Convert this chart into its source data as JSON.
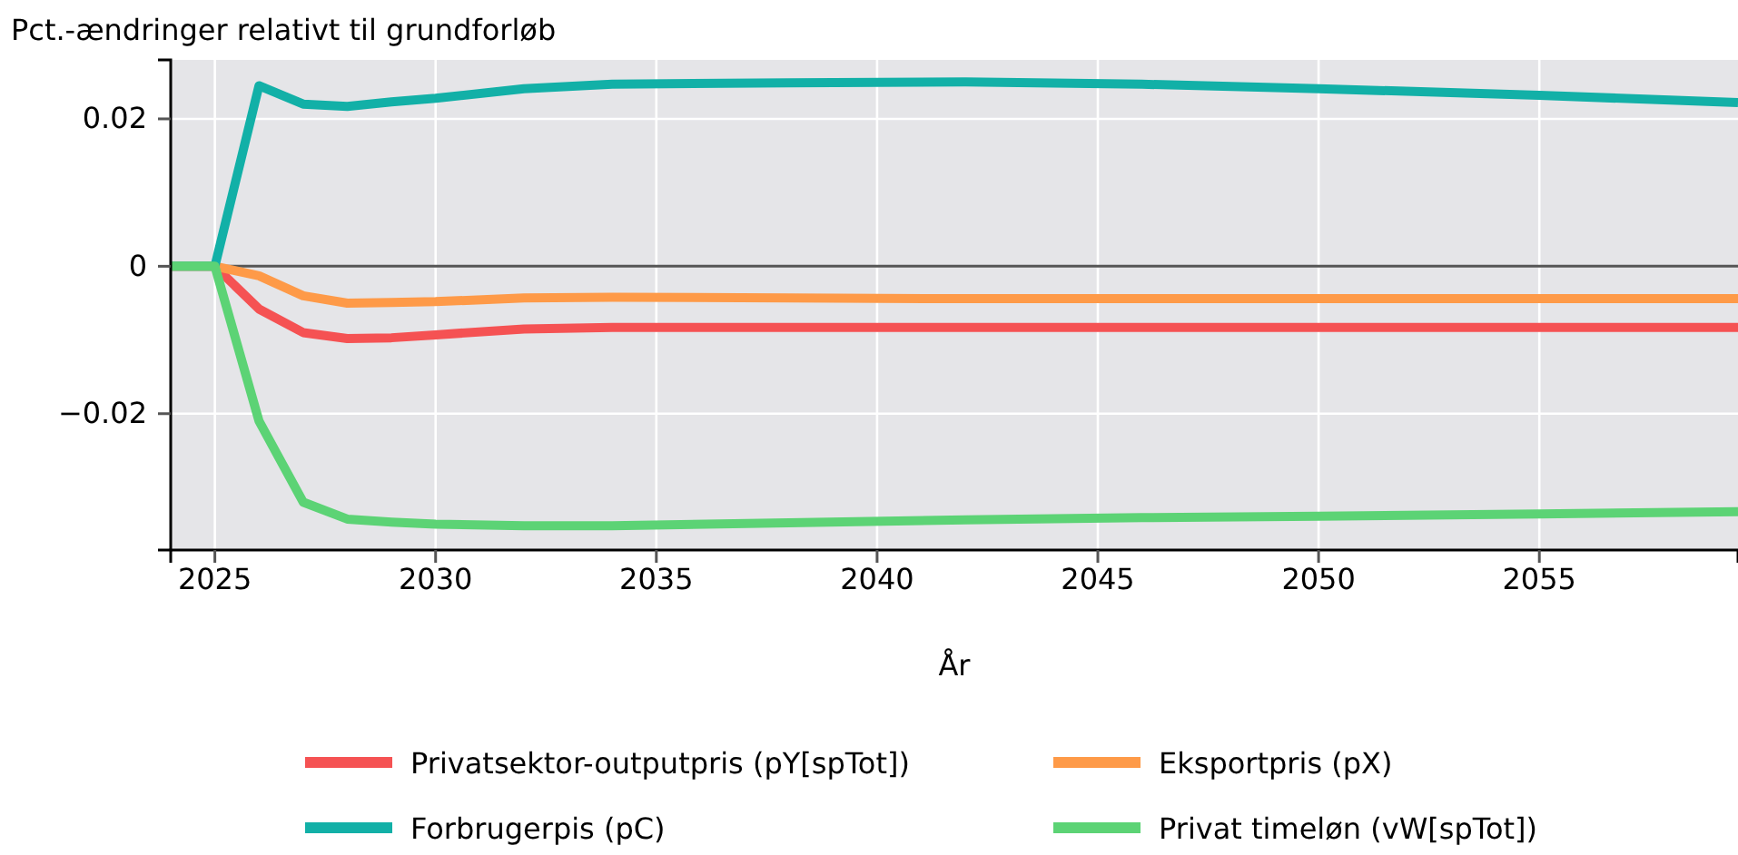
{
  "chart_data": {
    "type": "line",
    "ylabel": "Pct.-ændringer relativt til grundforløb",
    "xlabel": "År",
    "x": [
      2024,
      2025,
      2026,
      2027,
      2028,
      2029,
      2030,
      2032,
      2034,
      2038,
      2042,
      2046,
      2050,
      2055,
      2059.5
    ],
    "xlim": [
      2024,
      2059.5
    ],
    "xticks": [
      2025,
      2030,
      2035,
      2040,
      2045,
      2050,
      2055
    ],
    "ylim": [
      -0.0385,
      0.028
    ],
    "yticks": [
      {
        "value": -0.02,
        "label": "−0.02"
      },
      0,
      0.02
    ],
    "grid": true,
    "legend": "bottom",
    "line_style": "solid",
    "marker": "none",
    "ref_lines": [
      {
        "axis": "y",
        "value": 0,
        "color": "#555555"
      }
    ],
    "series": [
      {
        "name": "Privatsektor-outputpris (pY[spTot])",
        "color": "#f55253",
        "values": [
          0,
          0,
          -0.0058,
          -0.009,
          -0.0098,
          -0.0097,
          -0.0093,
          -0.0085,
          -0.0083,
          -0.0083,
          -0.0083,
          -0.0083,
          -0.0083,
          -0.0083,
          -0.0083
        ]
      },
      {
        "name": "Eksportpris (pX)",
        "color": "#fe9a48",
        "values": [
          0,
          0,
          -0.0013,
          -0.004,
          -0.005,
          -0.0049,
          -0.0048,
          -0.0043,
          -0.0042,
          -0.0043,
          -0.0044,
          -0.0044,
          -0.0044,
          -0.0044,
          -0.0044
        ]
      },
      {
        "name": "Forbrugerpis (pC)",
        "color": "#12b0a7",
        "values": [
          0,
          0,
          0.0245,
          0.022,
          0.0217,
          0.0223,
          0.0228,
          0.0241,
          0.0247,
          0.0249,
          0.025,
          0.0247,
          0.0241,
          0.0232,
          0.0222
        ]
      },
      {
        "name": "Privat timeløn (vW[spTot])",
        "color": "#5cd375",
        "values": [
          0,
          0,
          -0.021,
          -0.032,
          -0.0343,
          -0.0347,
          -0.035,
          -0.0352,
          -0.0352,
          -0.0348,
          -0.0344,
          -0.0341,
          -0.0339,
          -0.0336,
          -0.0333
        ]
      }
    ]
  }
}
